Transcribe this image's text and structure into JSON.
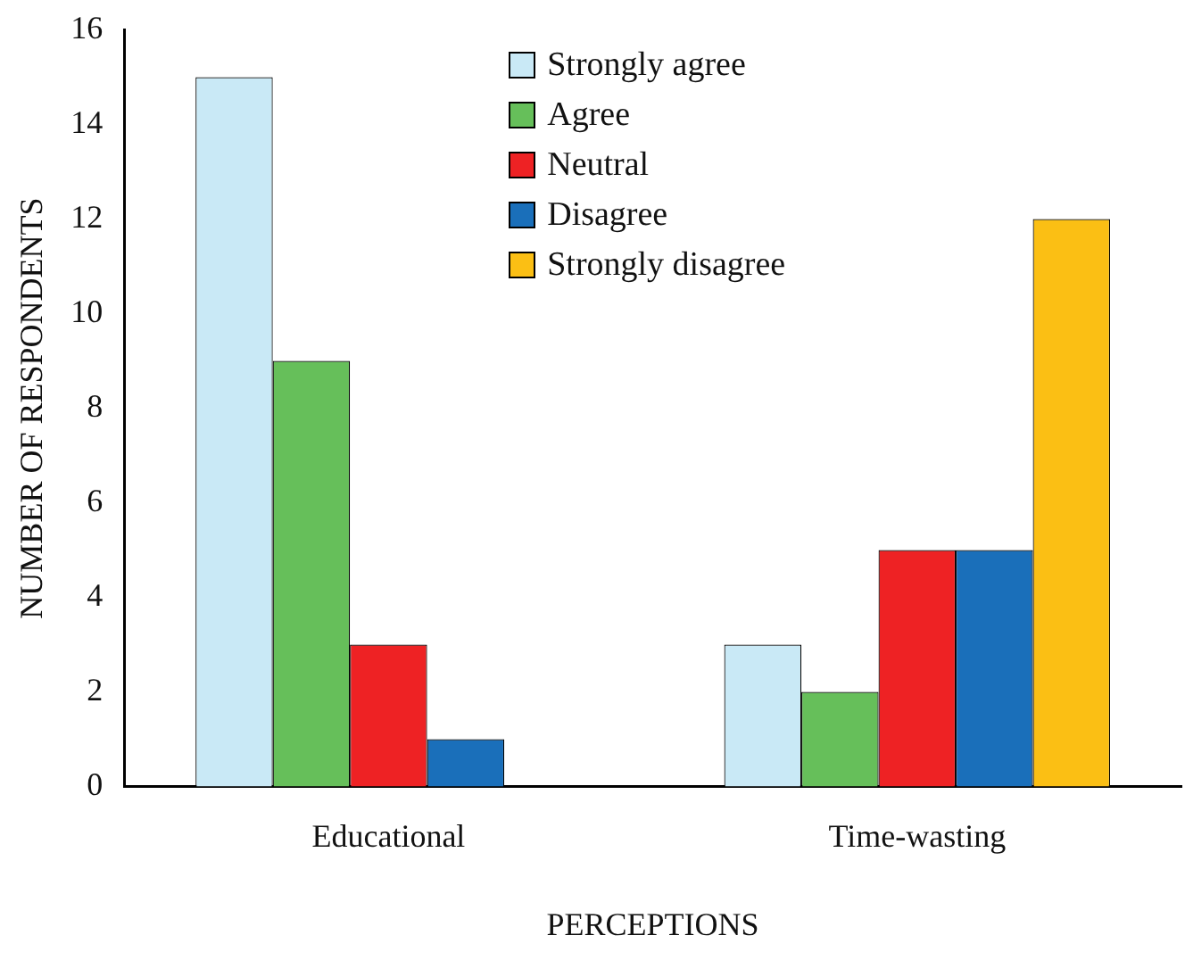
{
  "chart_data": {
    "type": "bar",
    "xlabel": "PERCEPTIONS",
    "ylabel": "NUMBER OF RESPONDENTS",
    "categories": [
      "Educational",
      "Time-wasting"
    ],
    "series": [
      {
        "name": "Strongly agree",
        "color": "#c9e9f6",
        "values": [
          15,
          3
        ]
      },
      {
        "name": "Agree",
        "color": "#66bf5a",
        "values": [
          9,
          2
        ]
      },
      {
        "name": "Neutral",
        "color": "#ee2224",
        "values": [
          3,
          5
        ]
      },
      {
        "name": "Disagree",
        "color": "#1a6fba",
        "values": [
          1,
          5
        ]
      },
      {
        "name": "Strongly disagree",
        "color": "#fbbf14",
        "values": [
          0,
          12
        ]
      }
    ],
    "ylim": [
      0,
      16
    ],
    "yticks": [
      0,
      2,
      4,
      6,
      8,
      10,
      12,
      14,
      16
    ],
    "grid": false,
    "legend": "top"
  }
}
